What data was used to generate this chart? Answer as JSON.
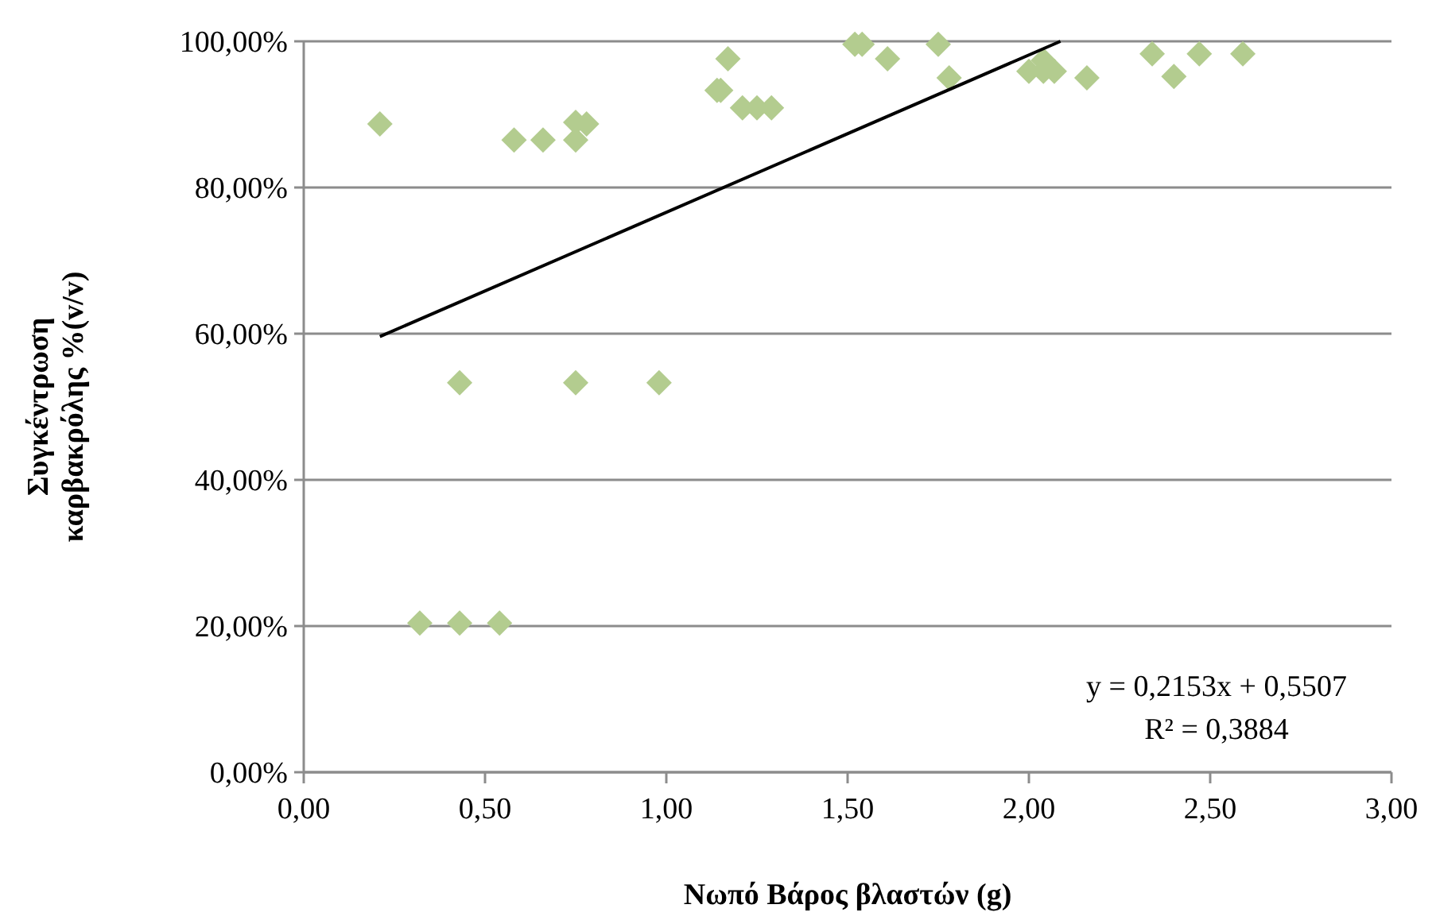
{
  "chart_data": {
    "type": "scatter",
    "xlabel": "Νωπό Βάρος βλαστών (g)",
    "ylabel": "Συγκέντρωση καρβακρόλης %(v/v)",
    "xlim": [
      0,
      3
    ],
    "xticks": [
      {
        "value": 0,
        "label": "0,00"
      },
      {
        "value": 0.5,
        "label": "0,50"
      },
      {
        "value": 1,
        "label": "1,00"
      },
      {
        "value": 1.5,
        "label": "1,50"
      },
      {
        "value": 2,
        "label": "2,00"
      },
      {
        "value": 2.5,
        "label": "2,50"
      },
      {
        "value": 3,
        "label": "3,00"
      }
    ],
    "ylim": [
      0,
      1
    ],
    "yticks": [
      {
        "value": 0,
        "label": "0,00%"
      },
      {
        "value": 0.2,
        "label": "20,00%"
      },
      {
        "value": 0.4,
        "label": "40,00%"
      },
      {
        "value": 0.6,
        "label": "60,00%"
      },
      {
        "value": 0.8,
        "label": "80,00%"
      },
      {
        "value": 1,
        "label": "100,00%"
      }
    ],
    "grid": "y",
    "marker": "diamond",
    "series": [
      {
        "color": "#b3cc8f",
        "x": [
          0.21,
          0.58,
          0.66,
          0.75,
          0.78,
          0.75,
          1.17,
          1.14,
          1.15,
          1.21,
          1.25,
          1.29,
          1.52,
          1.54,
          1.61,
          1.75,
          1.78,
          2.0,
          2.04,
          2.04,
          2.07,
          2.16,
          2.34,
          2.4,
          2.47,
          2.59,
          0.43,
          0.75,
          0.98,
          0.32,
          0.43,
          0.54
        ],
        "values": [
          0.887,
          0.865,
          0.865,
          0.889,
          0.887,
          0.865,
          0.976,
          0.933,
          0.933,
          0.909,
          0.909,
          0.909,
          0.996,
          0.996,
          0.976,
          0.996,
          0.95,
          0.959,
          0.974,
          0.959,
          0.959,
          0.95,
          0.983,
          0.952,
          0.983,
          0.983,
          0.533,
          0.533,
          0.533,
          0.204,
          0.204,
          0.204
        ]
      },
      {
        "type": "line",
        "color": "#000000",
        "x": [
          0.21,
          2.087
        ],
        "values": [
          0.596,
          1.0
        ],
        "marker": "none"
      }
    ],
    "annotations": [
      "y = 0,2153x + 0,5507",
      "R² = 0,3884"
    ]
  }
}
